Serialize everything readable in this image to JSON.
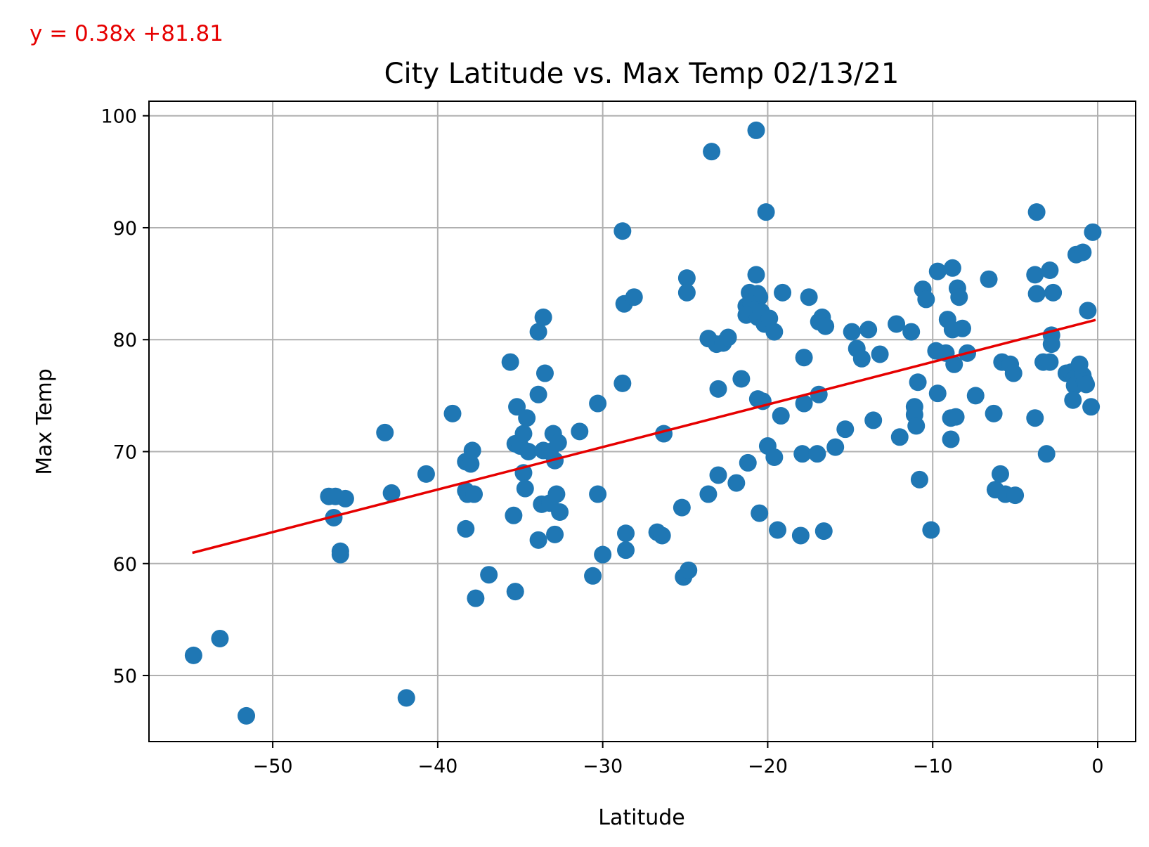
{
  "chart_data": {
    "type": "scatter",
    "title": "City Latitude vs. Max Temp 02/13/21",
    "xlabel": "Latitude",
    "ylabel": "Max Temp",
    "xlim": [
      -57.5,
      2.3
    ],
    "ylim": [
      44.1,
      101.3
    ],
    "xticks": [
      -50,
      -40,
      -30,
      -20,
      -10,
      0
    ],
    "yticks": [
      50,
      60,
      70,
      80,
      90,
      100
    ],
    "xtick_labels": [
      "−50",
      "−40",
      "−30",
      "−20",
      "−10",
      "0"
    ],
    "ytick_labels": [
      "50",
      "60",
      "70",
      "80",
      "90",
      "100"
    ],
    "grid": true,
    "point_color": "#1f77b4",
    "regression": {
      "equation": "y = 0.38x +81.81",
      "slope": 0.38,
      "intercept": 81.81,
      "x_range": [
        -54.8,
        -0.2
      ],
      "color": "#e60000"
    },
    "points": [
      [
        -54.8,
        51.8
      ],
      [
        -53.2,
        53.3
      ],
      [
        -51.6,
        46.4
      ],
      [
        -41.9,
        48.0
      ],
      [
        -46.6,
        66.0
      ],
      [
        -46.2,
        66.0
      ],
      [
        -45.6,
        65.8
      ],
      [
        -46.3,
        64.1
      ],
      [
        -45.9,
        61.1
      ],
      [
        -45.9,
        60.8
      ],
      [
        -43.2,
        71.7
      ],
      [
        -42.8,
        66.3
      ],
      [
        -40.7,
        68.0
      ],
      [
        -39.1,
        73.4
      ],
      [
        -38.3,
        69.1
      ],
      [
        -38.0,
        68.9
      ],
      [
        -37.9,
        70.1
      ],
      [
        -38.3,
        66.5
      ],
      [
        -38.2,
        66.2
      ],
      [
        -37.8,
        66.2
      ],
      [
        -38.3,
        63.1
      ],
      [
        -37.7,
        56.9
      ],
      [
        -36.9,
        59.0
      ],
      [
        -35.6,
        78.0
      ],
      [
        -35.2,
        74.0
      ],
      [
        -35.3,
        70.7
      ],
      [
        -35.0,
        70.5
      ],
      [
        -34.8,
        71.6
      ],
      [
        -34.6,
        73.0
      ],
      [
        -34.5,
        70.0
      ],
      [
        -34.8,
        68.1
      ],
      [
        -34.7,
        66.7
      ],
      [
        -35.4,
        64.3
      ],
      [
        -35.3,
        57.5
      ],
      [
        -33.9,
        80.7
      ],
      [
        -33.6,
        82.0
      ],
      [
        -33.9,
        75.1
      ],
      [
        -33.5,
        77.0
      ],
      [
        -33.9,
        62.1
      ],
      [
        -33.6,
        70.1
      ],
      [
        -33.2,
        70.0
      ],
      [
        -33.0,
        71.6
      ],
      [
        -32.7,
        70.8
      ],
      [
        -32.9,
        69.2
      ],
      [
        -33.7,
        65.3
      ],
      [
        -33.2,
        65.4
      ],
      [
        -32.8,
        66.2
      ],
      [
        -32.6,
        64.6
      ],
      [
        -32.9,
        62.6
      ],
      [
        -31.4,
        71.8
      ],
      [
        -30.3,
        74.3
      ],
      [
        -30.3,
        66.2
      ],
      [
        -30.0,
        60.8
      ],
      [
        -30.6,
        58.9
      ],
      [
        -28.8,
        89.7
      ],
      [
        -28.7,
        83.2
      ],
      [
        -28.1,
        83.8
      ],
      [
        -28.8,
        76.1
      ],
      [
        -28.6,
        62.7
      ],
      [
        -28.6,
        61.2
      ],
      [
        -26.7,
        62.8
      ],
      [
        -26.4,
        62.5
      ],
      [
        -26.3,
        71.6
      ],
      [
        -25.2,
        65.0
      ],
      [
        -25.1,
        58.8
      ],
      [
        -24.8,
        59.4
      ],
      [
        -24.9,
        85.5
      ],
      [
        -24.9,
        84.2
      ],
      [
        -23.4,
        96.8
      ],
      [
        -23.6,
        80.1
      ],
      [
        -23.1,
        79.6
      ],
      [
        -22.7,
        79.7
      ],
      [
        -22.4,
        80.2
      ],
      [
        -23.0,
        75.6
      ],
      [
        -23.0,
        67.9
      ],
      [
        -23.6,
        66.2
      ],
      [
        -21.9,
        67.2
      ],
      [
        -21.6,
        76.5
      ],
      [
        -21.2,
        69.0
      ],
      [
        -20.7,
        98.7
      ],
      [
        -20.7,
        85.8
      ],
      [
        -21.1,
        84.2
      ],
      [
        -20.6,
        84.1
      ],
      [
        -20.5,
        83.8
      ],
      [
        -21.3,
        83.0
      ],
      [
        -21.0,
        83.2
      ],
      [
        -20.8,
        82.7
      ],
      [
        -21.3,
        82.2
      ],
      [
        -20.6,
        82.0
      ],
      [
        -20.4,
        82.5
      ],
      [
        -20.2,
        81.4
      ],
      [
        -19.9,
        81.9
      ],
      [
        -20.1,
        91.4
      ],
      [
        -19.6,
        80.7
      ],
      [
        -20.6,
        74.7
      ],
      [
        -20.3,
        74.5
      ],
      [
        -20.0,
        70.5
      ],
      [
        -19.6,
        69.5
      ],
      [
        -20.5,
        64.5
      ],
      [
        -19.4,
        63.0
      ],
      [
        -19.1,
        84.2
      ],
      [
        -19.2,
        73.2
      ],
      [
        -18.0,
        62.5
      ],
      [
        -17.8,
        78.4
      ],
      [
        -17.5,
        83.8
      ],
      [
        -17.8,
        74.3
      ],
      [
        -17.9,
        69.8
      ],
      [
        -17.0,
        69.8
      ],
      [
        -16.7,
        82.0
      ],
      [
        -16.9,
        81.6
      ],
      [
        -16.5,
        81.2
      ],
      [
        -16.9,
        75.1
      ],
      [
        -16.6,
        62.9
      ],
      [
        -15.9,
        70.4
      ],
      [
        -15.3,
        72.0
      ],
      [
        -14.9,
        80.7
      ],
      [
        -14.6,
        79.2
      ],
      [
        -14.3,
        78.3
      ],
      [
        -13.9,
        80.9
      ],
      [
        -13.6,
        72.8
      ],
      [
        -13.2,
        78.7
      ],
      [
        -12.2,
        81.4
      ],
      [
        -12.0,
        71.3
      ],
      [
        -11.3,
        80.7
      ],
      [
        -11.1,
        74.0
      ],
      [
        -11.1,
        73.3
      ],
      [
        -11.0,
        72.3
      ],
      [
        -10.9,
        76.2
      ],
      [
        -10.8,
        67.5
      ],
      [
        -10.6,
        84.5
      ],
      [
        -10.4,
        83.6
      ],
      [
        -10.1,
        63.0
      ],
      [
        -9.7,
        86.1
      ],
      [
        -9.8,
        79.0
      ],
      [
        -9.2,
        78.8
      ],
      [
        -9.7,
        75.2
      ],
      [
        -9.1,
        81.8
      ],
      [
        -8.8,
        86.4
      ],
      [
        -8.8,
        80.9
      ],
      [
        -8.7,
        77.8
      ],
      [
        -8.9,
        73.0
      ],
      [
        -8.6,
        73.1
      ],
      [
        -8.9,
        71.1
      ],
      [
        -8.5,
        84.6
      ],
      [
        -8.4,
        83.8
      ],
      [
        -8.2,
        81.0
      ],
      [
        -7.9,
        78.8
      ],
      [
        -7.4,
        75.0
      ],
      [
        -6.6,
        85.4
      ],
      [
        -6.3,
        73.4
      ],
      [
        -6.2,
        66.6
      ],
      [
        -5.9,
        68.0
      ],
      [
        -5.8,
        78.0
      ],
      [
        -5.6,
        66.2
      ],
      [
        -5.3,
        77.8
      ],
      [
        -5.1,
        77.0
      ],
      [
        -5.0,
        66.1
      ],
      [
        -3.7,
        91.4
      ],
      [
        -3.8,
        85.8
      ],
      [
        -3.7,
        84.1
      ],
      [
        -3.8,
        73.0
      ],
      [
        -3.3,
        78.0
      ],
      [
        -3.1,
        69.8
      ],
      [
        -2.9,
        86.2
      ],
      [
        -2.8,
        80.4
      ],
      [
        -2.8,
        79.6
      ],
      [
        -2.9,
        78.0
      ],
      [
        -2.7,
        84.2
      ],
      [
        -1.9,
        77.0
      ],
      [
        -1.6,
        77.1
      ],
      [
        -1.4,
        76.5
      ],
      [
        -1.4,
        75.9
      ],
      [
        -1.5,
        74.6
      ],
      [
        -1.3,
        87.6
      ],
      [
        -1.1,
        77.8
      ],
      [
        -0.9,
        87.8
      ],
      [
        -0.9,
        76.8
      ],
      [
        -0.8,
        76.3
      ],
      [
        -0.7,
        76.0
      ],
      [
        -0.6,
        82.6
      ],
      [
        -0.4,
        74.0
      ],
      [
        -0.3,
        89.6
      ]
    ]
  }
}
